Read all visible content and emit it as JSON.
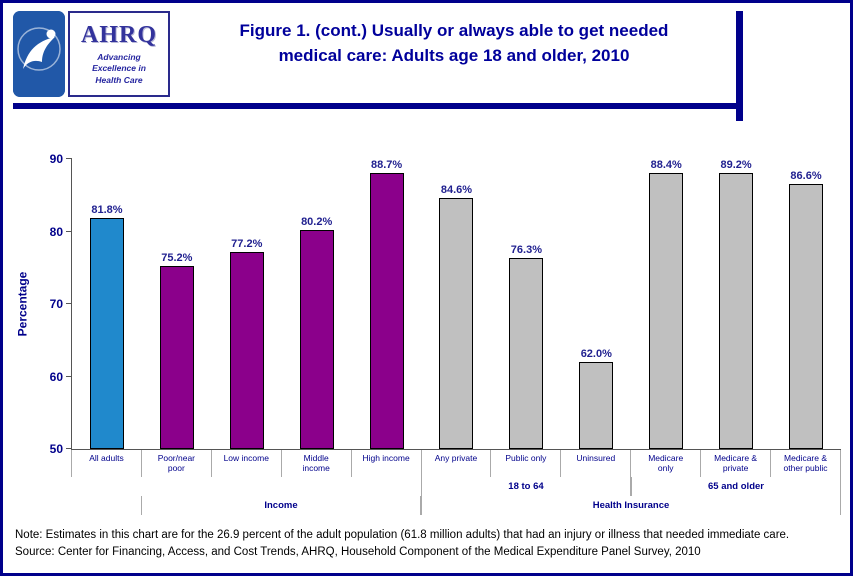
{
  "header": {
    "hhs_logo_name": "hhs-seal",
    "ahrq_word": "AHRQ",
    "ahrq_tagline_line1": "Advancing",
    "ahrq_tagline_line2": "Excellence in",
    "ahrq_tagline_line3": "Health Care",
    "title_line1": "Figure 1. (cont.) Usually or always able to get needed",
    "title_line2": "medical care: Adults age 18 and older, 2010"
  },
  "chart_data": {
    "type": "bar",
    "title": "Figure 1. (cont.) Usually or always able to get needed medical care: Adults age 18 and older, 2010",
    "ylabel": "Percentage",
    "ylim": [
      50,
      90
    ],
    "yticks": [
      90,
      80,
      70,
      60,
      50
    ],
    "grid": false,
    "legend_position": "none",
    "categories": [
      "All adults",
      "Poor/near poor",
      "Low income",
      "Middle income",
      "High income",
      "Any private",
      "Public only",
      "Uninsured",
      "Medicare only",
      "Medicare & private",
      "Medicare & other public"
    ],
    "category_display": [
      "All adults",
      "Poor/near\npoor",
      "Low income",
      "Middle\nincome",
      "High income",
      "Any private",
      "Public only",
      "Uninsured",
      "Medicare\nonly",
      "Medicare &\nprivate",
      "Medicare &\nother public"
    ],
    "values": [
      81.8,
      75.2,
      77.2,
      80.2,
      88.7,
      84.6,
      76.3,
      62.0,
      88.4,
      89.2,
      86.6
    ],
    "value_labels": [
      "81.8%",
      "75.2%",
      "77.2%",
      "80.2%",
      "88.7%",
      "84.6%",
      "76.3%",
      "62.0%",
      "88.4%",
      "89.2%",
      "86.6%"
    ],
    "bar_colors": [
      "#2089CC",
      "#8B008B",
      "#8B008B",
      "#8B008B",
      "#8B008B",
      "#C0C0C0",
      "#C0C0C0",
      "#C0C0C0",
      "#C0C0C0",
      "#C0C0C0",
      "#C0C0C0"
    ],
    "group_rows": [
      {
        "cells": [
          {
            "label": "",
            "span": 5,
            "blank": true
          },
          {
            "label": "18 to 64",
            "span": 3,
            "blank": false
          },
          {
            "label": "65 and older",
            "span": 3,
            "blank": false
          }
        ]
      },
      {
        "cells": [
          {
            "label": "",
            "span": 1,
            "blank": true
          },
          {
            "label": "Income",
            "span": 4,
            "blank": false
          },
          {
            "label": "Health Insurance",
            "span": 6,
            "blank": false
          }
        ]
      }
    ]
  },
  "footer": {
    "note": "Note: Estimates in this chart are for the 26.9 percent of the adult population (61.8 million adults) that had an injury or illness that needed immediate care.",
    "source": "Source: Center for Financing, Access, and Cost Trends, AHRQ, Household Component of the Medical Expenditure Panel Survey,  2010"
  },
  "colors": {
    "accent_navy": "#00008B",
    "title_text": "#00009b",
    "all_adults_bar": "#2089CC",
    "income_bar": "#8B008B",
    "insurance_bar": "#C0C0C0",
    "value_label_text": "#1f1f8f"
  }
}
